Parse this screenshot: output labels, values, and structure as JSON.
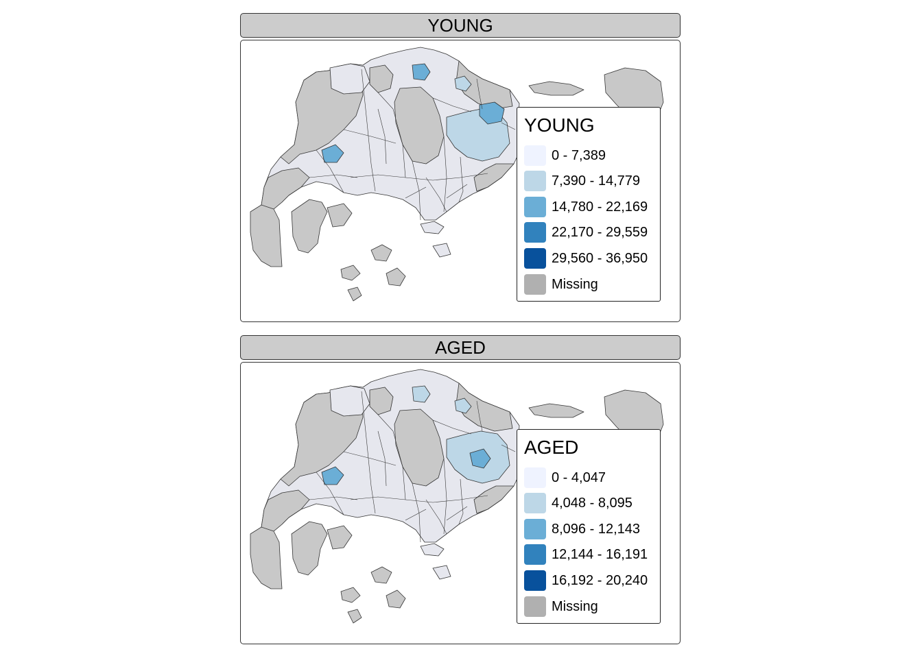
{
  "panels": [
    {
      "title": "YOUNG",
      "legend": {
        "title": "YOUNG",
        "items": [
          {
            "label": "0 - 7,389",
            "color": "#eff3ff"
          },
          {
            "label": "7,390 - 14,779",
            "color": "#bdd7e7"
          },
          {
            "label": "14,780 - 22,169",
            "color": "#6baed6"
          },
          {
            "label": "22,170 - 29,559",
            "color": "#3182bd"
          },
          {
            "label": "29,560 - 36,950",
            "color": "#08519c"
          },
          {
            "label": "Missing",
            "color": "#b0b0b0"
          }
        ]
      }
    },
    {
      "title": "AGED",
      "legend": {
        "title": "AGED",
        "items": [
          {
            "label": "0 - 4,047",
            "color": "#eff3ff"
          },
          {
            "label": "4,048 - 8,095",
            "color": "#bdd7e7"
          },
          {
            "label": "8,096 - 12,143",
            "color": "#6baed6"
          },
          {
            "label": "12,144 - 16,191",
            "color": "#3182bd"
          },
          {
            "label": "16,192 - 20,240",
            "color": "#08519c"
          },
          {
            "label": "Missing",
            "color": "#b0b0b0"
          }
        ]
      }
    }
  ],
  "colors": {
    "land_missing": "#c8c8c8",
    "land_low": "#e6e7ee",
    "border": "#333333",
    "header_bg": "#cccccc"
  }
}
